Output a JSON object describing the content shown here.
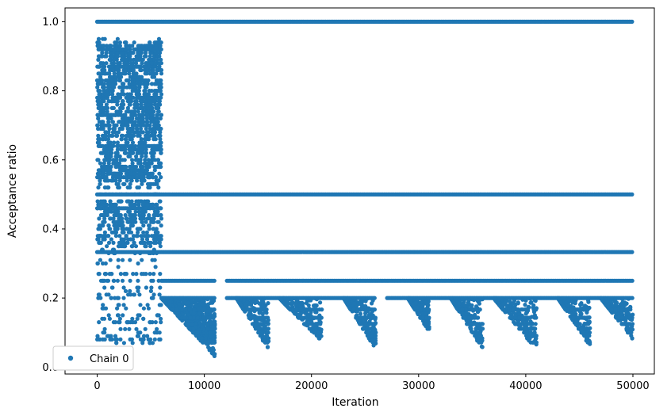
{
  "chart_data": {
    "type": "scatter",
    "title": "",
    "xlabel": "Iteration",
    "ylabel": "Acceptance ratio",
    "xlim": [
      -3000,
      52000
    ],
    "ylim": [
      -0.02,
      1.04
    ],
    "xticks": [
      0,
      10000,
      20000,
      30000,
      40000,
      50000
    ],
    "xtick_labels": [
      "0",
      "10000",
      "20000",
      "30000",
      "40000",
      "50000"
    ],
    "yticks": [
      0.0,
      0.2,
      0.4,
      0.6,
      0.8,
      1.0
    ],
    "ytick_labels": [
      "0.0",
      "0.2",
      "0.4",
      "0.6",
      "0.8",
      "1.0"
    ],
    "grid": false,
    "legend": {
      "position": "lower-left",
      "entries": [
        "Chain 0"
      ]
    },
    "series": [
      {
        "name": "Chain 0",
        "color": "#1f77b4",
        "marker": "circle",
        "bands": [
          {
            "y": 1.0,
            "x_range": [
              0,
              50000
            ],
            "note": "dense"
          },
          {
            "y": 0.5,
            "x_range": [
              0,
              50000
            ],
            "note": "dense"
          },
          {
            "y": 0.333,
            "x_range": [
              0,
              50000
            ],
            "note": "dense"
          },
          {
            "y": 0.25,
            "x_range": [
              6000,
              50000
            ],
            "note": "dense"
          },
          {
            "y": 0.2,
            "x_range": [
              6000,
              50000
            ],
            "note": "dense"
          }
        ],
        "segments": [
          {
            "x_range": [
              0,
              6000
            ],
            "y_range": [
              0.05,
              0.95
            ],
            "note": "scattered, many discrete levels"
          },
          {
            "x_range": [
              6000,
              11000
            ],
            "y_range": [
              0.03,
              0.2
            ],
            "note": "dense descending cloud"
          },
          {
            "x_range": [
              13000,
              16000
            ],
            "y_range": [
              0.05,
              0.2
            ]
          },
          {
            "x_range": [
              17000,
              21000
            ],
            "y_range": [
              0.07,
              0.2
            ]
          },
          {
            "x_range": [
              23000,
              26000
            ],
            "y_range": [
              0.05,
              0.2
            ]
          },
          {
            "x_range": [
              29000,
              31000
            ],
            "y_range": [
              0.1,
              0.2
            ]
          },
          {
            "x_range": [
              33000,
              36000
            ],
            "y_range": [
              0.05,
              0.2
            ]
          },
          {
            "x_range": [
              37000,
              41000
            ],
            "y_range": [
              0.05,
              0.2
            ]
          },
          {
            "x_range": [
              43000,
              46000
            ],
            "y_range": [
              0.06,
              0.2
            ]
          },
          {
            "x_range": [
              47000,
              50000
            ],
            "y_range": [
              0.08,
              0.2
            ]
          }
        ]
      }
    ]
  }
}
